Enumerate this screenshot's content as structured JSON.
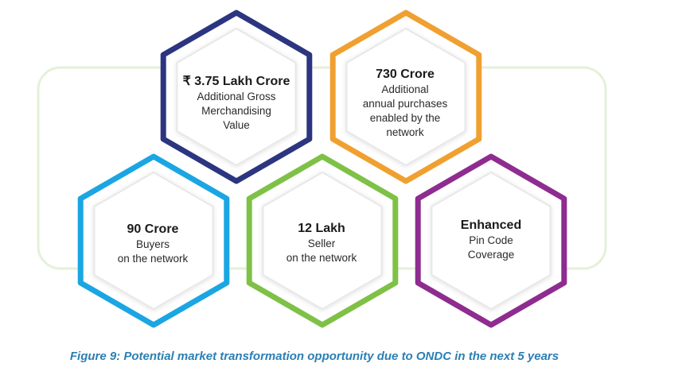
{
  "hexagons": [
    {
      "id": "gmv",
      "title": "₹ 3.75 Lakh Crore",
      "lines": [
        "Additional Gross",
        "Merchandising",
        "Value"
      ],
      "color": "#2b3580"
    },
    {
      "id": "purchases",
      "title": "730 Crore",
      "lines": [
        "Additional",
        "annual purchases",
        "enabled by the",
        "network"
      ],
      "color": "#f0a030"
    },
    {
      "id": "buyers",
      "title": "90 Crore",
      "lines": [
        "Buyers",
        "on the network"
      ],
      "color": "#1aa6e2"
    },
    {
      "id": "sellers",
      "title": "12 Lakh",
      "lines": [
        "Seller",
        "on the network"
      ],
      "color": "#7ec146"
    },
    {
      "id": "pincode",
      "title": "Enhanced",
      "lines": [
        "Pin Code",
        "Coverage"
      ],
      "color": "#8e2c90"
    }
  ],
  "colors": {
    "background_frame": "#e4f1da",
    "inner_hex_border": "#e8e8e8",
    "caption": "#2b7fb4"
  },
  "caption": "Figure 9: Potential market transformation opportunity due to ONDC in the next 5 years"
}
